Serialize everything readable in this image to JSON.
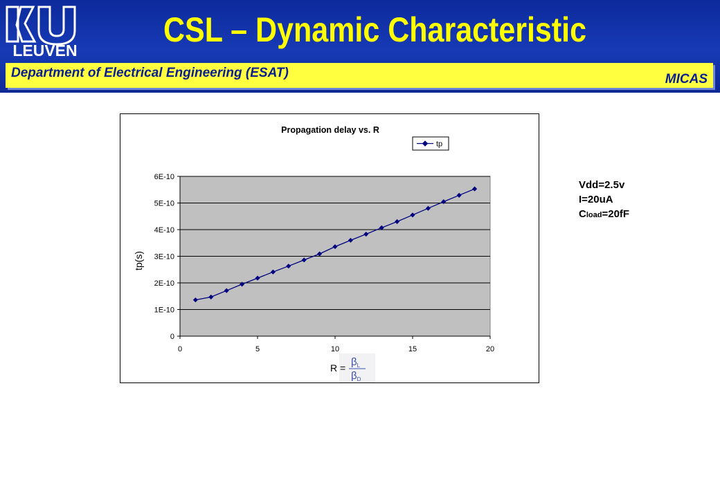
{
  "header": {
    "logo_text": "LEUVEN",
    "title": "CSL – Dynamic Characteristic",
    "department": "Department of Electrical Engineering (ESAT)",
    "group": "MICAS"
  },
  "params": {
    "vdd": "Vdd=2.5v",
    "current": "I=20uA",
    "cload_prefix": "C",
    "cload_sub": "load",
    "cload_value": "=20fF"
  },
  "formula": {
    "lhs": "R =",
    "numerator": "β",
    "numerator_sub": "L",
    "denominator": "β",
    "denominator_sub": "D"
  },
  "colors": {
    "header_blue": "#173ab5",
    "title_yellow": "#ffff00",
    "bar_yellow": "#ffff40",
    "dept_text": "#0a1f8f",
    "plot_area": "#c0c0c0",
    "series": "#000080"
  },
  "chart_data": {
    "type": "line",
    "title": "Propagation delay vs. R",
    "xlabel": "",
    "ylabel": "tp(s)",
    "xlim": [
      0,
      20
    ],
    "ylim": [
      0,
      6e-10
    ],
    "x_ticks": [
      "0",
      "5",
      "10",
      "15",
      "20"
    ],
    "y_ticks": [
      "0",
      "1E-10",
      "2E-10",
      "3E-10",
      "4E-10",
      "5E-10",
      "6E-10"
    ],
    "grid": "horizontal",
    "legend": "top-right",
    "series": [
      {
        "name": "tp",
        "x": [
          1,
          2,
          3,
          4,
          5,
          6,
          7,
          8,
          9,
          10,
          11,
          12,
          13,
          14,
          15,
          16,
          17,
          18,
          19
        ],
        "y": [
          1.36e-10,
          1.47e-10,
          1.71e-10,
          1.95e-10,
          2.18e-10,
          2.41e-10,
          2.63e-10,
          2.86e-10,
          3.09e-10,
          3.36e-10,
          3.6e-10,
          3.83e-10,
          4.07e-10,
          4.3e-10,
          4.55e-10,
          4.8e-10,
          5.05e-10,
          5.29e-10,
          5.53e-10
        ]
      }
    ]
  }
}
